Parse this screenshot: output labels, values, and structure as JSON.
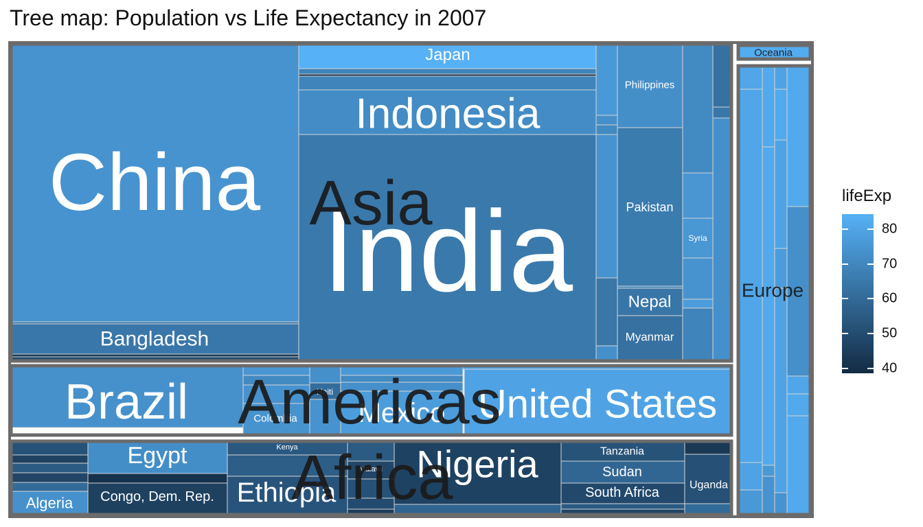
{
  "title": "Tree map: Population vs Life Expectancy in 2007",
  "legend": {
    "title": "lifeExp",
    "ticks": [
      "80",
      "70",
      "60",
      "50",
      "40"
    ]
  },
  "chart_data": {
    "type": "treemap",
    "title": "Tree map: Population vs Life Expectancy in 2007",
    "size_variable": "pop",
    "fill_variable": "lifeExp",
    "fill_range": [
      39.6,
      82.6
    ],
    "colors": {
      "low": "#132B43",
      "high": "#56B1F7",
      "border_group": "#6b6b6b",
      "border_tile": "#d6d6d6"
    },
    "groups": [
      "Asia",
      "Americas",
      "Africa",
      "Europe",
      "Oceania"
    ],
    "labeled_tiles": [
      {
        "group": "Asia",
        "label": "China",
        "lifeExp": 73.0
      },
      {
        "group": "Asia",
        "label": "India",
        "lifeExp": 64.7
      },
      {
        "group": "Asia",
        "label": "Indonesia",
        "lifeExp": 70.7
      },
      {
        "group": "Asia",
        "label": "Japan",
        "lifeExp": 82.6
      },
      {
        "group": "Asia",
        "label": "Bangladesh",
        "lifeExp": 64.1
      },
      {
        "group": "Asia",
        "label": "Philippines",
        "lifeExp": 71.7
      },
      {
        "group": "Asia",
        "label": "Pakistan",
        "lifeExp": 65.5
      },
      {
        "group": "Asia",
        "label": "Nepal",
        "lifeExp": 63.8
      },
      {
        "group": "Asia",
        "label": "Myanmar",
        "lifeExp": 62.1
      },
      {
        "group": "Asia",
        "label": "Syria",
        "lifeExp": 74.1
      },
      {
        "group": "Americas",
        "label": "Brazil",
        "lifeExp": 72.4
      },
      {
        "group": "Americas",
        "label": "United States",
        "lifeExp": 78.2
      },
      {
        "group": "Americas",
        "label": "Mexico",
        "lifeExp": 76.2
      },
      {
        "group": "Americas",
        "label": "Colombia",
        "lifeExp": 72.9
      },
      {
        "group": "Americas",
        "label": "Haiti",
        "lifeExp": 60.9
      },
      {
        "group": "Africa",
        "label": "Nigeria",
        "lifeExp": 46.9
      },
      {
        "group": "Africa",
        "label": "Egypt",
        "lifeExp": 71.3
      },
      {
        "group": "Africa",
        "label": "Ethiopia",
        "lifeExp": 52.9
      },
      {
        "group": "Africa",
        "label": "Congo, Dem. Rep.",
        "lifeExp": 46.5
      },
      {
        "group": "Africa",
        "label": "Algeria",
        "lifeExp": 72.3
      },
      {
        "group": "Africa",
        "label": "Tanzania",
        "lifeExp": 52.5
      },
      {
        "group": "Africa",
        "label": "Sudan",
        "lifeExp": 58.6
      },
      {
        "group": "Africa",
        "label": "South Africa",
        "lifeExp": 49.3
      },
      {
        "group": "Africa",
        "label": "Kenya",
        "lifeExp": 54.1
      },
      {
        "group": "Africa",
        "label": "Uganda",
        "lifeExp": 51.5
      },
      {
        "group": "Africa",
        "label": "Malawi",
        "lifeExp": 48.3
      },
      {
        "group": "Europe",
        "label": "Europe",
        "lifeExp": 77.6
      },
      {
        "group": "Oceania",
        "label": "Oceania",
        "lifeExp": 80.7
      }
    ]
  }
}
